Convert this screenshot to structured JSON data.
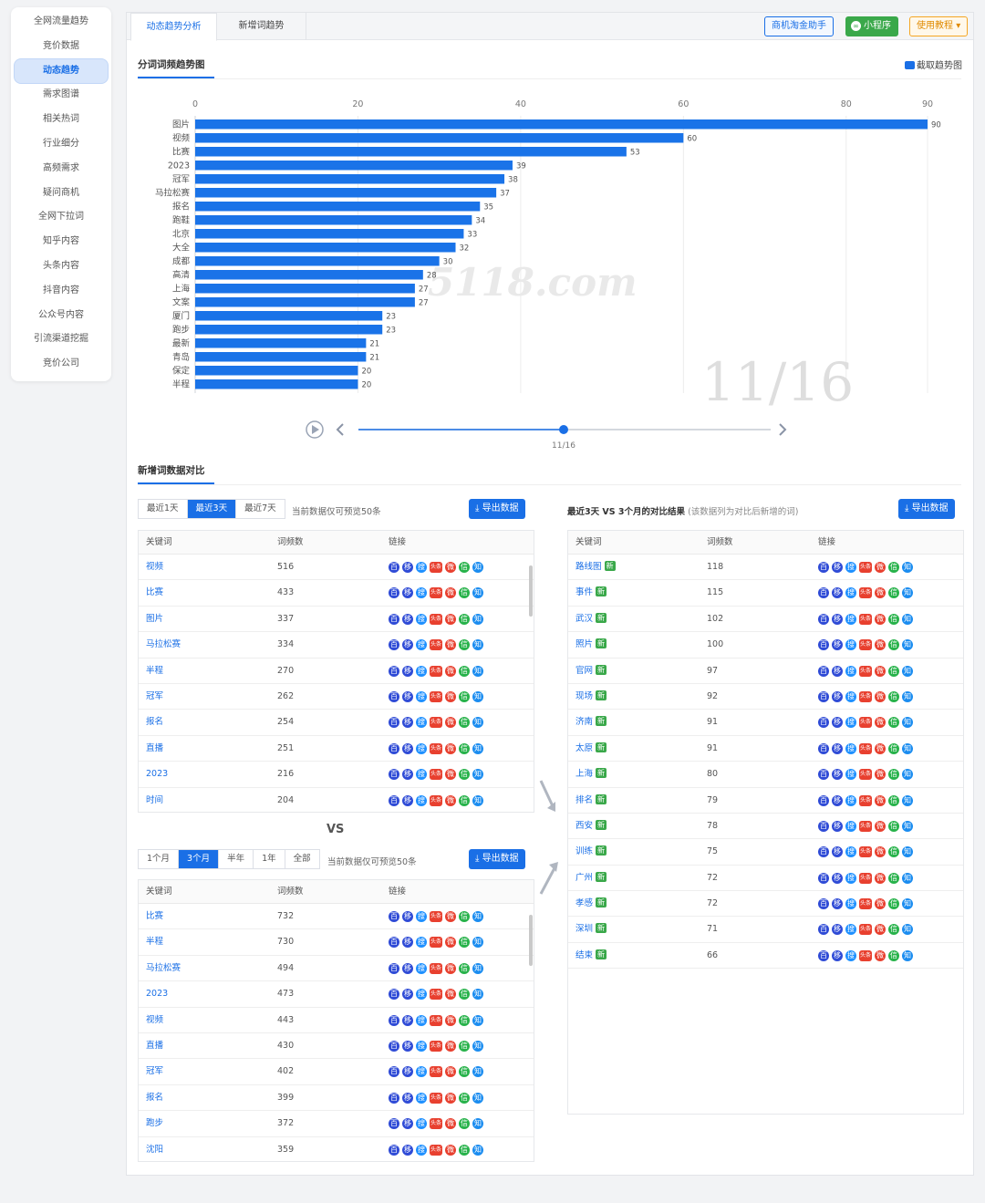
{
  "sidebar": {
    "items": [
      "全网流量趋势",
      "竞价数据",
      "动态趋势",
      "需求图谱",
      "相关热词",
      "行业细分",
      "高频需求",
      "疑问商机",
      "全网下拉词",
      "知乎内容",
      "头条内容",
      "抖音内容",
      "公众号内容",
      "引流渠道挖掘",
      "竞价公司"
    ],
    "active_index": 2
  },
  "tabs": [
    "动态趋势分析",
    "新增词趋势"
  ],
  "toolbar": {
    "assistant": "商机淘金助手",
    "miniprogram": "小程序",
    "tutorial": "使用教程"
  },
  "chart_section": {
    "title": "分词词频趋势图",
    "screenshot": "截取趋势图",
    "watermark": "5118.com",
    "date_big": "11/16",
    "slider_label": "11/16"
  },
  "chart_data": {
    "type": "bar",
    "orientation": "horizontal",
    "categories": [
      "图片",
      "视频",
      "比赛",
      "2023",
      "冠军",
      "马拉松赛",
      "报名",
      "跑鞋",
      "北京",
      "大全",
      "成都",
      "高清",
      "上海",
      "文案",
      "厦门",
      "跑步",
      "最新",
      "青岛",
      "保定",
      "半程"
    ],
    "values": [
      90,
      60,
      53,
      39,
      38,
      37,
      35,
      34,
      33,
      32,
      30,
      28,
      27,
      27,
      23,
      23,
      21,
      21,
      20,
      20
    ],
    "x_ticks": [
      0,
      20,
      40,
      60,
      80,
      90
    ],
    "xlim": [
      0,
      90
    ],
    "colors": {
      "bar": "#1a73e8"
    }
  },
  "compare_section": {
    "title": "新增词数据对比",
    "vs": "VS"
  },
  "left_top": {
    "segments": [
      "最近1天",
      "最近3天",
      "最近7天"
    ],
    "active": 1,
    "note": "当前数据仅可预览50条",
    "export": "导出数据",
    "headers": [
      "关键词",
      "词频数",
      "链接"
    ],
    "rows": [
      [
        "视频",
        "516"
      ],
      [
        "比赛",
        "433"
      ],
      [
        "图片",
        "337"
      ],
      [
        "马拉松赛",
        "334"
      ],
      [
        "半程",
        "270"
      ],
      [
        "冠军",
        "262"
      ],
      [
        "报名",
        "254"
      ],
      [
        "直播",
        "251"
      ],
      [
        "2023",
        "216"
      ],
      [
        "时间",
        "204"
      ]
    ]
  },
  "left_bottom": {
    "segments": [
      "1个月",
      "3个月",
      "半年",
      "1年",
      "全部"
    ],
    "active": 1,
    "note": "当前数据仅可预览50条",
    "export": "导出数据",
    "headers": [
      "关键词",
      "词频数",
      "链接"
    ],
    "rows": [
      [
        "比赛",
        "732"
      ],
      [
        "半程",
        "730"
      ],
      [
        "马拉松赛",
        "494"
      ],
      [
        "2023",
        "473"
      ],
      [
        "视频",
        "443"
      ],
      [
        "直播",
        "430"
      ],
      [
        "冠军",
        "402"
      ],
      [
        "报名",
        "399"
      ],
      [
        "跑步",
        "372"
      ],
      [
        "沈阳",
        "359"
      ]
    ]
  },
  "right": {
    "title": "最近3天 VS 3个月的对比结果",
    "subtitle": "(该数据列为对比后新增的词)",
    "export": "导出数据",
    "headers": [
      "关键词",
      "词频数",
      "链接"
    ],
    "new_badge": "新",
    "rows": [
      [
        "路线图",
        "118"
      ],
      [
        "事件",
        "115"
      ],
      [
        "武汉",
        "102"
      ],
      [
        "照片",
        "100"
      ],
      [
        "官网",
        "97"
      ],
      [
        "现场",
        "92"
      ],
      [
        "济南",
        "91"
      ],
      [
        "太原",
        "91"
      ],
      [
        "上海",
        "80"
      ],
      [
        "排名",
        "79"
      ],
      [
        "西安",
        "78"
      ],
      [
        "训练",
        "75"
      ],
      [
        "广州",
        "72"
      ],
      [
        "孝感",
        "72"
      ],
      [
        "深圳",
        "71"
      ],
      [
        "结束",
        "66"
      ]
    ]
  },
  "link_icons": [
    {
      "name": "baidu-icon",
      "glyph": "百",
      "color": "#2f4bd6"
    },
    {
      "name": "mobile-icon",
      "glyph": "移",
      "color": "#2f4bd6"
    },
    {
      "name": "360-icon",
      "glyph": "搜",
      "color": "#1e90ff"
    },
    {
      "name": "toutiao-icon",
      "glyph": "头条",
      "color": "#e8402f"
    },
    {
      "name": "weibo-icon",
      "glyph": "微",
      "color": "#e8402f"
    },
    {
      "name": "wechat-icon",
      "glyph": "信",
      "color": "#27b24a"
    },
    {
      "name": "zhihu-icon",
      "glyph": "知",
      "color": "#1a8cf0"
    }
  ]
}
